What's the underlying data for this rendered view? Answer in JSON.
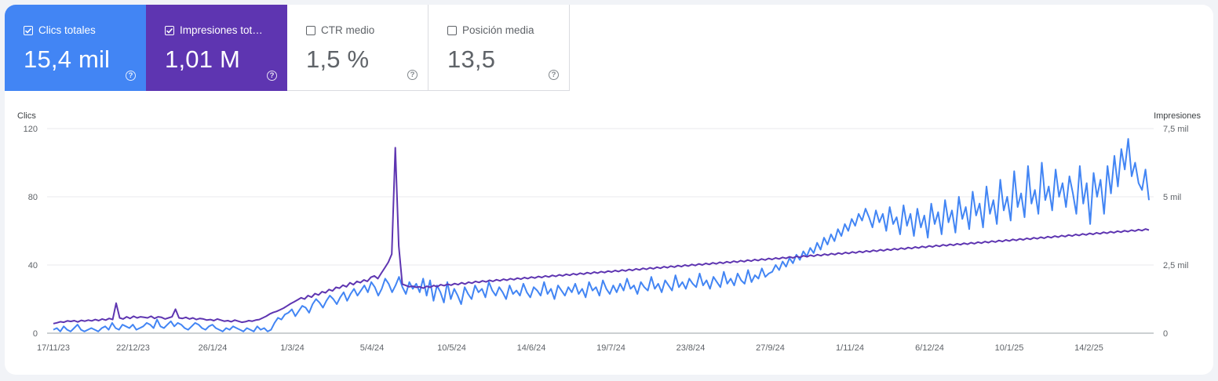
{
  "metrics": [
    {
      "label": "Clics totales",
      "value": "15,4 mil",
      "checked": true,
      "color": "#4285f4"
    },
    {
      "label": "Impresiones total…",
      "value": "1,01 M",
      "checked": true,
      "color": "#5e35b1"
    },
    {
      "label": "CTR medio",
      "value": "1,5 %",
      "checked": false
    },
    {
      "label": "Posición media",
      "value": "13,5",
      "checked": false
    }
  ],
  "help_glyph": "?",
  "chart_data": {
    "type": "line",
    "left_axis": {
      "title": "Clics",
      "ticks": [
        "0",
        "40",
        "80",
        "120"
      ],
      "range": [
        0,
        120
      ]
    },
    "right_axis": {
      "title": "Impresiones",
      "ticks": [
        "0",
        "2,5 mil",
        "5 mil",
        "7,5 mil"
      ],
      "range": [
        0,
        7500
      ]
    },
    "x_ticks": [
      "17/11/23",
      "22/12/23",
      "26/1/24",
      "1/3/24",
      "5/4/24",
      "10/5/24",
      "14/6/24",
      "19/7/24",
      "23/8/24",
      "27/9/24",
      "1/11/24",
      "6/12/24",
      "10/1/25",
      "14/2/25"
    ],
    "x_range": [
      "17/11/23",
      "23/3/25"
    ],
    "grid": true,
    "series": [
      {
        "name": "Clics totales",
        "axis": "left",
        "color": "#4285f4",
        "values": [
          2,
          3,
          1,
          4,
          2,
          1,
          3,
          5,
          2,
          1,
          2,
          3,
          2,
          1,
          3,
          4,
          2,
          6,
          3,
          2,
          5,
          4,
          3,
          5,
          2,
          3,
          4,
          6,
          5,
          3,
          8,
          4,
          3,
          5,
          7,
          4,
          6,
          5,
          3,
          2,
          4,
          6,
          5,
          3,
          2,
          4,
          5,
          3,
          2,
          1,
          3,
          2,
          4,
          3,
          2,
          1,
          3,
          2,
          1,
          4,
          2,
          3,
          1,
          2,
          6,
          9,
          8,
          11,
          12,
          14,
          10,
          13,
          16,
          15,
          12,
          17,
          20,
          18,
          15,
          19,
          22,
          20,
          17,
          21,
          24,
          19,
          23,
          26,
          22,
          25,
          28,
          24,
          30,
          27,
          22,
          26,
          32,
          29,
          24,
          28,
          33,
          27,
          23,
          30,
          26,
          29,
          24,
          32,
          22,
          31,
          19,
          28,
          24,
          18,
          30,
          20,
          26,
          22,
          17,
          27,
          23,
          20,
          28,
          24,
          26,
          21,
          30,
          25,
          22,
          27,
          24,
          20,
          28,
          23,
          25,
          22,
          29,
          24,
          21,
          27,
          25,
          22,
          30,
          23,
          26,
          20,
          28,
          25,
          22,
          27,
          24,
          29,
          23,
          26,
          21,
          30,
          25,
          27,
          22,
          31,
          26,
          23,
          28,
          24,
          29,
          25,
          32,
          26,
          28,
          23,
          30,
          27,
          25,
          33,
          26,
          29,
          24,
          31,
          28,
          25,
          34,
          27,
          30,
          26,
          32,
          29,
          27,
          35,
          28,
          31,
          26,
          33,
          30,
          27,
          36,
          29,
          32,
          28,
          35,
          31,
          29,
          37,
          30,
          34,
          32,
          38,
          33,
          35,
          36,
          40,
          37,
          42,
          39,
          44,
          41,
          46,
          43,
          48,
          45,
          50,
          47,
          53,
          49,
          56,
          52,
          58,
          54,
          61,
          57,
          64,
          60,
          67,
          63,
          70,
          66,
          73,
          68,
          62,
          72,
          65,
          70,
          60,
          74,
          64,
          68,
          58,
          75,
          63,
          70,
          57,
          73,
          62,
          69,
          56,
          76,
          64,
          71,
          58,
          78,
          65,
          72,
          59,
          80,
          67,
          74,
          61,
          83,
          69,
          76,
          62,
          86,
          70,
          78,
          64,
          90,
          72,
          80,
          66,
          95,
          74,
          82,
          68,
          98,
          76,
          84,
          70,
          100,
          78,
          86,
          72,
          96,
          80,
          88,
          74,
          92,
          82,
          70,
          98,
          76,
          88,
          64,
          94,
          80,
          90,
          70,
          98,
          82,
          104,
          86,
          108,
          96,
          114,
          92,
          100,
          88,
          84,
          96,
          78
        ]
      },
      {
        "name": "Impresiones totales",
        "axis": "right",
        "color": "#5e35b1",
        "values": [
          350,
          380,
          420,
          400,
          450,
          430,
          460,
          410,
          470,
          440,
          480,
          450,
          500,
          460,
          520,
          480,
          540,
          500,
          1100,
          560,
          520,
          600,
          540,
          620,
          560,
          600,
          580,
          560,
          620,
          540,
          600,
          580,
          520,
          560,
          600,
          880,
          560,
          540,
          580,
          520,
          560,
          500,
          540,
          520,
          480,
          500,
          460,
          520,
          480,
          440,
          460,
          420,
          480,
          440,
          400,
          420,
          460,
          440,
          480,
          500,
          560,
          620,
          700,
          760,
          800,
          860,
          920,
          1000,
          1080,
          1150,
          1220,
          1300,
          1250,
          1380,
          1320,
          1450,
          1400,
          1520,
          1480,
          1600,
          1550,
          1680,
          1650,
          1760,
          1700,
          1850,
          1780,
          1900,
          1850,
          1950,
          1900,
          2050,
          2100,
          2000,
          2200,
          2400,
          2600,
          2900,
          6800,
          3200,
          1800,
          1750,
          1700,
          1720,
          1680,
          1700,
          1650,
          1720,
          1680,
          1750,
          1700,
          1780,
          1740,
          1800,
          1760,
          1820,
          1780,
          1850,
          1800,
          1870,
          1830,
          1900,
          1860,
          1920,
          1880,
          1940,
          1900,
          1960,
          1920,
          1980,
          1940,
          2000,
          1960,
          2020,
          1980,
          2040,
          2000,
          2060,
          2020,
          2080,
          2040,
          2100,
          2060,
          2120,
          2080,
          2140,
          2100,
          2160,
          2120,
          2180,
          2140,
          2200,
          2160,
          2220,
          2180,
          2240,
          2200,
          2260,
          2220,
          2280,
          2240,
          2300,
          2260,
          2320,
          2280,
          2340,
          2300,
          2360,
          2320,
          2380,
          2340,
          2400,
          2360,
          2420,
          2380,
          2440,
          2400,
          2460,
          2420,
          2480,
          2440,
          2500,
          2460,
          2520,
          2480,
          2540,
          2500,
          2560,
          2520,
          2580,
          2540,
          2600,
          2560,
          2620,
          2580,
          2640,
          2600,
          2660,
          2620,
          2680,
          2640,
          2700,
          2660,
          2720,
          2680,
          2740,
          2700,
          2760,
          2720,
          2780,
          2740,
          2800,
          2760,
          2820,
          2780,
          2840,
          2800,
          2860,
          2820,
          2880,
          2840,
          2900,
          2860,
          2920,
          2880,
          2940,
          2900,
          2960,
          2920,
          2980,
          2940,
          3000,
          2960,
          3020,
          2980,
          3040,
          3000,
          3060,
          3020,
          3080,
          3040,
          3100,
          3060,
          3120,
          3080,
          3140,
          3100,
          3160,
          3120,
          3180,
          3140,
          3200,
          3160,
          3220,
          3180,
          3240,
          3200,
          3260,
          3220,
          3280,
          3240,
          3300,
          3260,
          3320,
          3280,
          3340,
          3300,
          3360,
          3320,
          3380,
          3340,
          3400,
          3360,
          3420,
          3380,
          3440,
          3400,
          3460,
          3420,
          3480,
          3440,
          3500,
          3460,
          3520,
          3480,
          3540,
          3500,
          3560,
          3520,
          3580,
          3540,
          3600,
          3560,
          3620,
          3580,
          3640,
          3600,
          3660,
          3620,
          3680,
          3640,
          3700,
          3660,
          3720,
          3680,
          3740,
          3700,
          3760,
          3720,
          3780,
          3740,
          3800,
          3760,
          3820,
          3780
        ]
      }
    ]
  }
}
